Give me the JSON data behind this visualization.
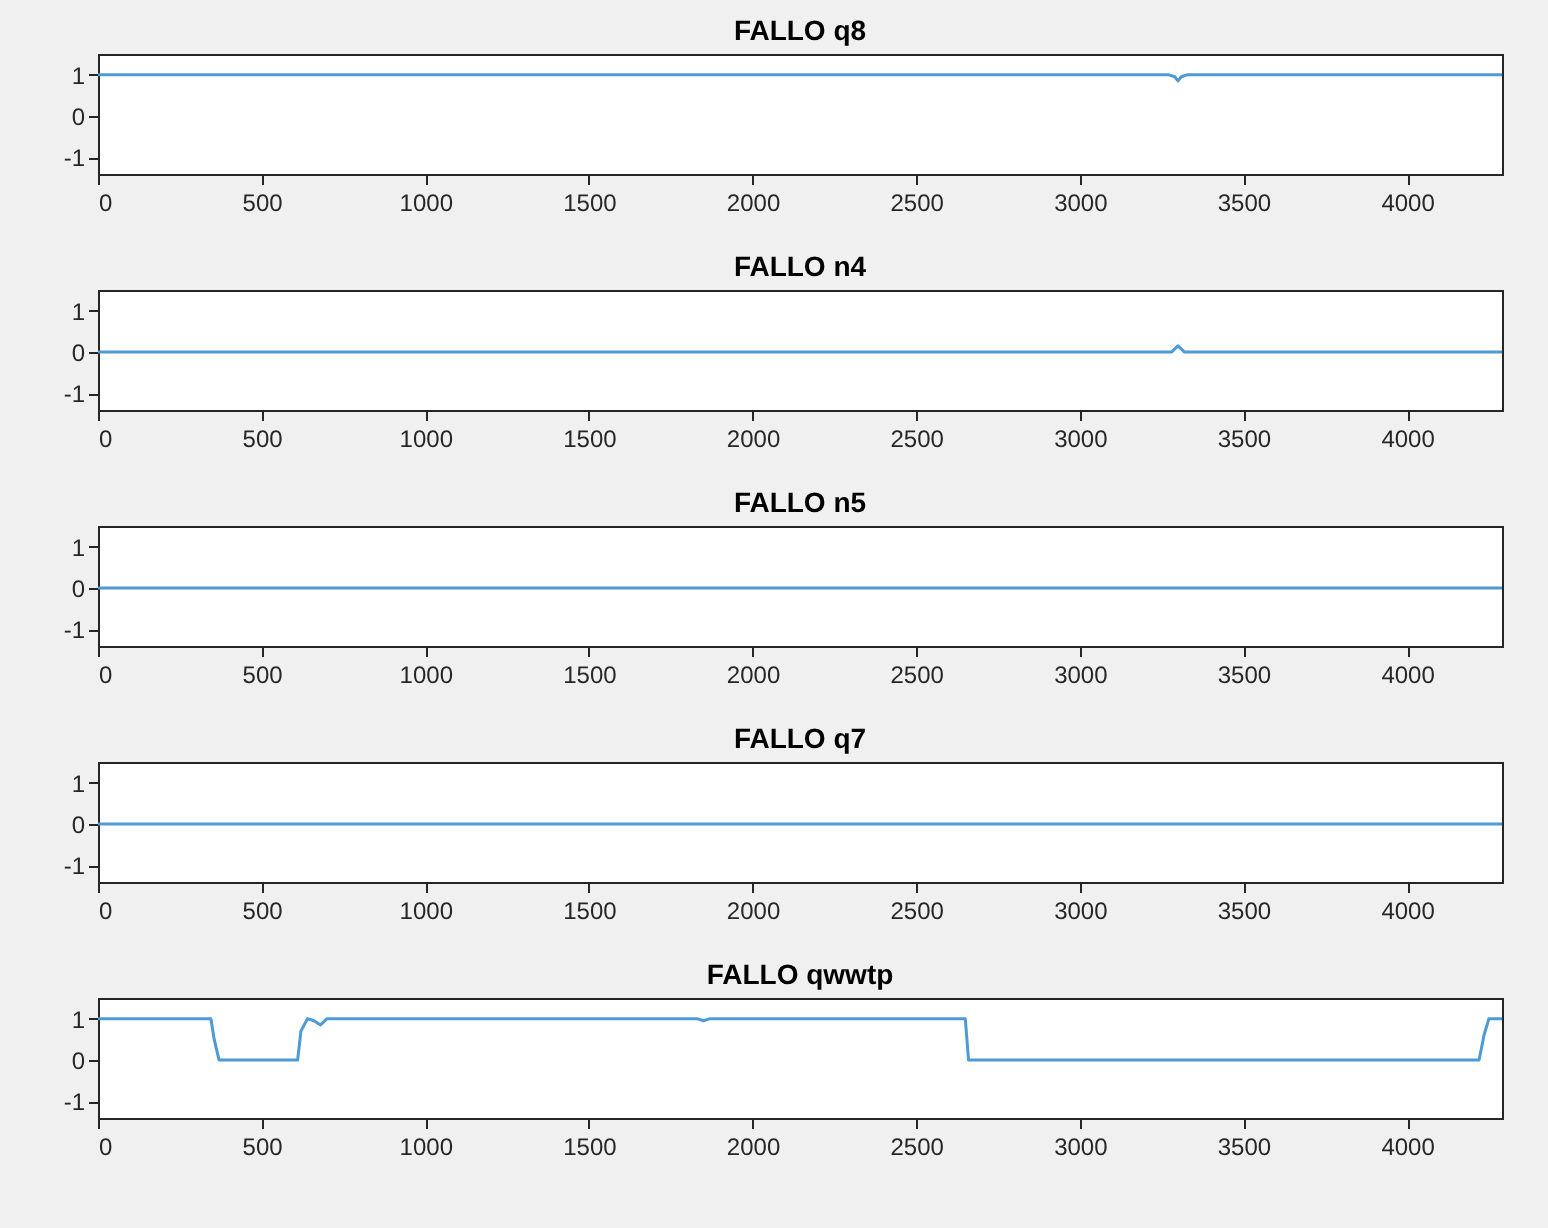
{
  "chart_data": [
    {
      "type": "line",
      "title": "FALLO q8",
      "xlim": [
        0,
        4290
      ],
      "xticks": [
        0,
        500,
        1000,
        1500,
        2000,
        2500,
        3000,
        3500,
        4000
      ],
      "ylim": [
        -1.4,
        1.5
      ],
      "yticks": [
        -1,
        0,
        1
      ],
      "grid": false,
      "series": [
        {
          "color": "#4d9bd6",
          "x": [
            0,
            3270,
            3290,
            3300,
            3310,
            3330,
            4290
          ],
          "values": [
            1,
            1,
            0.95,
            0.85,
            0.95,
            1,
            1
          ]
        }
      ]
    },
    {
      "type": "line",
      "title": "FALLO n4",
      "xlim": [
        0,
        4290
      ],
      "xticks": [
        0,
        500,
        1000,
        1500,
        2000,
        2500,
        3000,
        3500,
        4000
      ],
      "ylim": [
        -1.4,
        1.5
      ],
      "yticks": [
        -1,
        0,
        1
      ],
      "grid": false,
      "series": [
        {
          "color": "#4d9bd6",
          "x": [
            0,
            3280,
            3300,
            3320,
            4290
          ],
          "values": [
            0,
            0,
            0.15,
            0,
            0
          ]
        }
      ]
    },
    {
      "type": "line",
      "title": "FALLO n5",
      "xlim": [
        0,
        4290
      ],
      "xticks": [
        0,
        500,
        1000,
        1500,
        2000,
        2500,
        3000,
        3500,
        4000
      ],
      "ylim": [
        -1.4,
        1.5
      ],
      "yticks": [
        -1,
        0,
        1
      ],
      "grid": false,
      "series": [
        {
          "color": "#4d9bd6",
          "x": [
            0,
            4290
          ],
          "values": [
            0,
            0
          ]
        }
      ]
    },
    {
      "type": "line",
      "title": "FALLO q7",
      "xlim": [
        0,
        4290
      ],
      "xticks": [
        0,
        500,
        1000,
        1500,
        2000,
        2500,
        3000,
        3500,
        4000
      ],
      "ylim": [
        -1.4,
        1.5
      ],
      "yticks": [
        -1,
        0,
        1
      ],
      "grid": false,
      "series": [
        {
          "color": "#4d9bd6",
          "x": [
            0,
            4290
          ],
          "values": [
            0,
            0
          ]
        }
      ]
    },
    {
      "type": "line",
      "title": "FALLO qwwtp",
      "xlim": [
        0,
        4290
      ],
      "xticks": [
        0,
        500,
        1000,
        1500,
        2000,
        2500,
        3000,
        3500,
        4000
      ],
      "ylim": [
        -1.4,
        1.5
      ],
      "yticks": [
        -1,
        0,
        1
      ],
      "grid": false,
      "series": [
        {
          "color": "#4d9bd6",
          "x": [
            0,
            345,
            355,
            370,
            610,
            620,
            640,
            660,
            680,
            700,
            750,
            1830,
            1850,
            1870,
            2650,
            2660,
            4220,
            4235,
            4250,
            4290
          ],
          "values": [
            1,
            1,
            0.5,
            0,
            0,
            0.7,
            1,
            0.95,
            0.85,
            1,
            1,
            1,
            0.95,
            1,
            1,
            0,
            0,
            0.6,
            1,
            1
          ]
        }
      ]
    }
  ]
}
